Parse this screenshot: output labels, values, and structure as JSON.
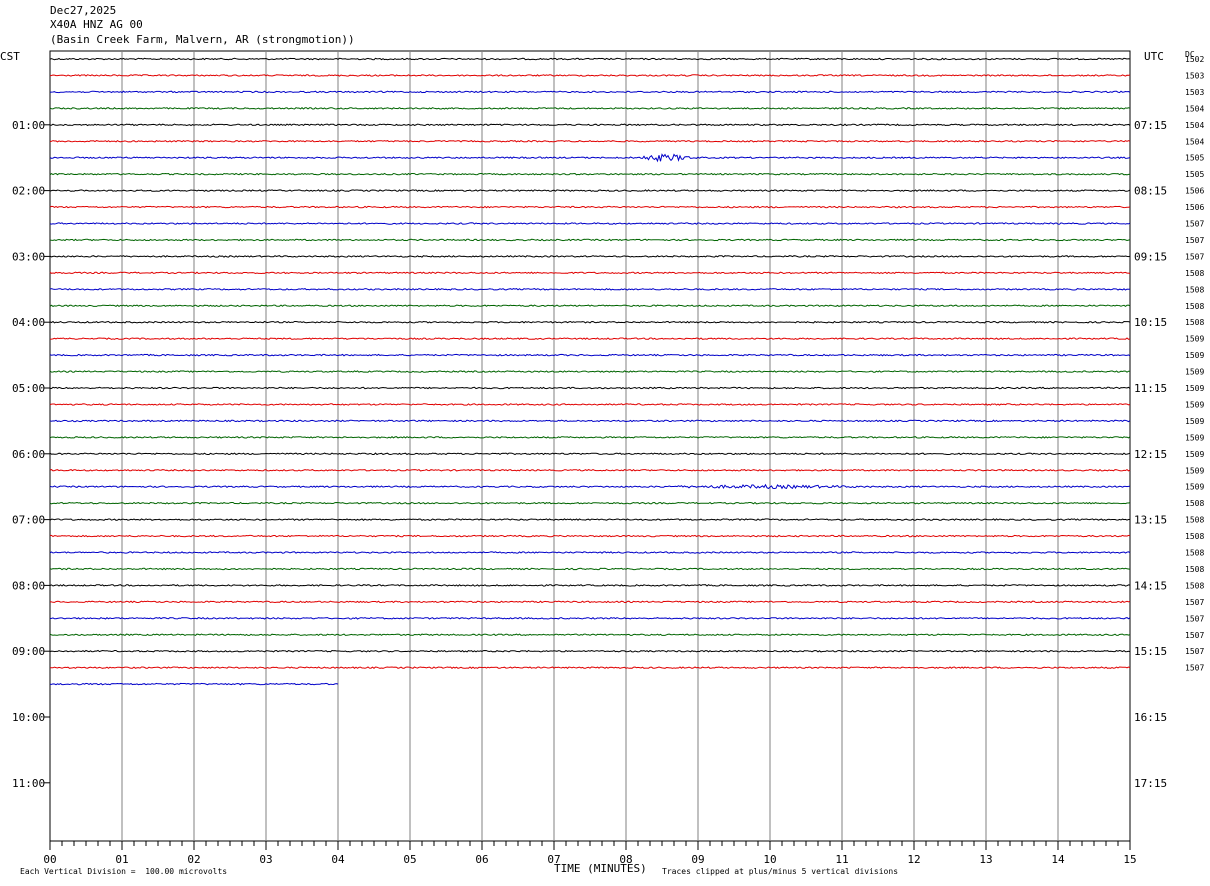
{
  "header": {
    "date": "Dec27,2025",
    "station": "X40A HNZ AG 00",
    "location": "(Basin Creek Farm, Malvern, AR (strongmotion))"
  },
  "left_tz": "CST",
  "right_tz": "UTC",
  "dc_label": "DC",
  "chart_data": {
    "type": "line",
    "subtype": "helicorder",
    "xlabel": "TIME (MINUTES)",
    "xlim": [
      0,
      15
    ],
    "x_ticks": [
      "00",
      "01",
      "02",
      "03",
      "04",
      "05",
      "06",
      "07",
      "08",
      "09",
      "10",
      "11",
      "12",
      "13",
      "14",
      "15"
    ],
    "left_hour_labels": [
      "01:00",
      "02:00",
      "03:00",
      "04:00",
      "05:00",
      "06:00",
      "07:00",
      "08:00",
      "09:00",
      "10:00",
      "11:00"
    ],
    "right_hour_labels": [
      "07:15",
      "08:15",
      "09:15",
      "10:15",
      "11:15",
      "12:15",
      "13:15",
      "14:15",
      "15:15",
      "16:15",
      "17:15"
    ],
    "trace_colors": [
      "#000000",
      "#e00000",
      "#0000c8",
      "#006400"
    ],
    "trace_count": 39,
    "last_trace_end_minute": 4,
    "dc_offsets": [
      "1502",
      "1503",
      "1503",
      "1504",
      "1504",
      "1504",
      "1505",
      "1505",
      "1506",
      "1506",
      "1507",
      "1507",
      "1507",
      "1508",
      "1508",
      "1508",
      "1508",
      "1509",
      "1509",
      "1509",
      "1509",
      "1509",
      "1509",
      "1509",
      "1509",
      "1509",
      "1509",
      "1508",
      "1508",
      "1508",
      "1508",
      "1508",
      "1508",
      "1507",
      "1507",
      "1507",
      "1507",
      "1507"
    ],
    "events": [
      {
        "trace": 6,
        "start_minute": 8.1,
        "end_minute": 9.0,
        "amplitude": "moderate"
      },
      {
        "trace": 26,
        "start_minute": 8.3,
        "end_minute": 11.5,
        "amplitude": "small"
      }
    ]
  },
  "footer": {
    "scale_note": "Each Vertical Division =  100.00 microvolts",
    "clip_note": "Traces clipped at plus/minus 5 vertical divisions"
  }
}
